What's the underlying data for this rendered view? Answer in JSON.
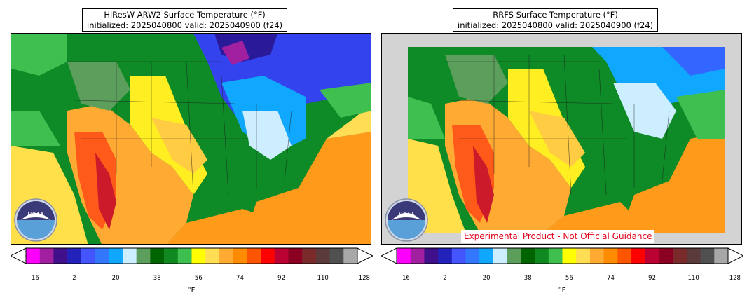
{
  "panels": [
    {
      "title_line1": "HiResW ARW2 Surface Temperature (°F)",
      "title_line2": "initialized: 2025040800 valid: 2025040900 (f24)"
    },
    {
      "title_line1": "RRFS Surface Temperature (°F)",
      "title_line2": "initialized: 2025040800 valid: 2025040900 (f24)",
      "watermark": "Experimental Product - Not Official Guidance"
    }
  ],
  "logo_label": "NOAA",
  "colorbar": {
    "unit_label": "°F",
    "tick_labels": [
      "−16",
      "2",
      "20",
      "38",
      "56",
      "74",
      "92",
      "110",
      "128"
    ],
    "colors": [
      "#ff00ff",
      "#a020a0",
      "#40108a",
      "#2222bb",
      "#4455ff",
      "#3377ff",
      "#10a8ff",
      "#cdeeff",
      "#5c9e5c",
      "#006400",
      "#108a20",
      "#3fbf4f",
      "#ffff00",
      "#ffdd55",
      "#ffaa33",
      "#ff8c00",
      "#ff5500",
      "#ff0000",
      "#bb0033",
      "#8b0020",
      "#7a2a2a",
      "#5a3a3a",
      "#505050",
      "#a8a8a8"
    ]
  },
  "colors": {
    "missing_data": "#d3d3d3",
    "watermark_text": "#e0001a"
  }
}
